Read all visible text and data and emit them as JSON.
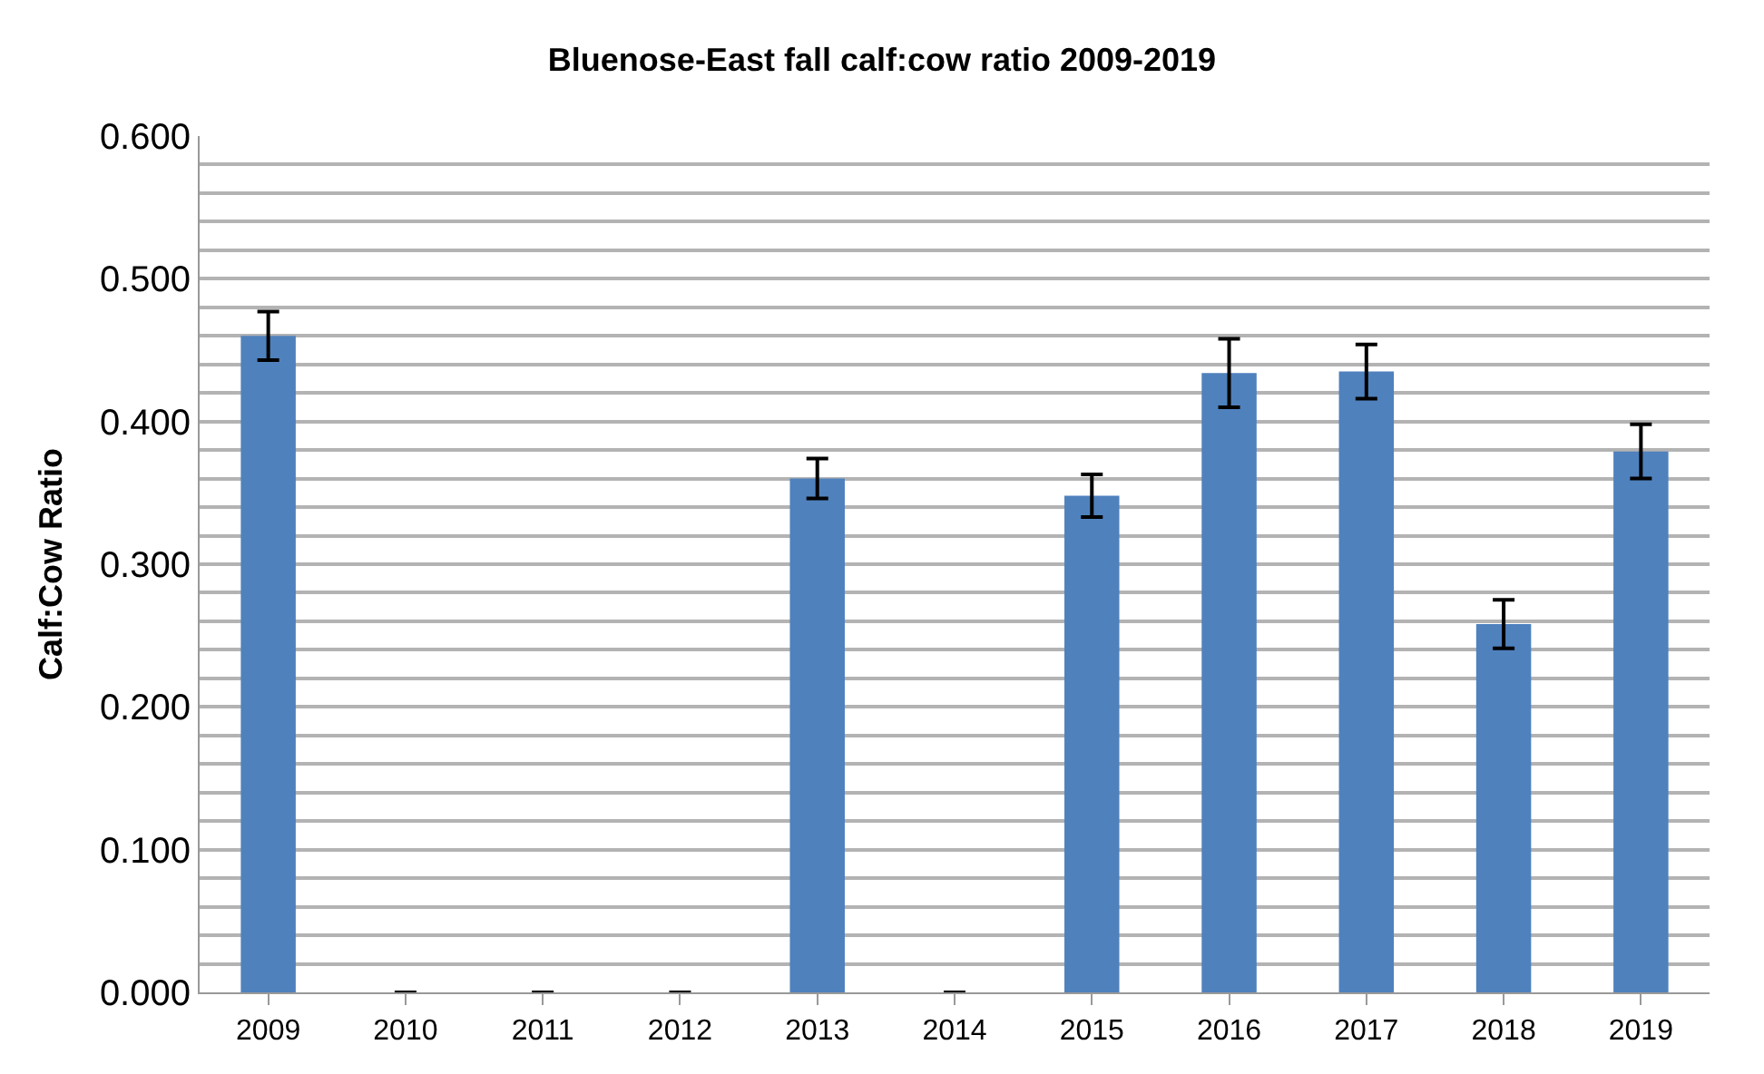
{
  "chart_data": {
    "type": "bar",
    "title": "Bluenose-East fall calf:cow ratio 2009-2019",
    "ylabel": "Calf:Cow Ratio",
    "categories": [
      "2009",
      "2010",
      "2011",
      "2012",
      "2013",
      "2014",
      "2015",
      "2016",
      "2017",
      "2018",
      "2019"
    ],
    "series": [
      {
        "color": "#4f81bd",
        "values": [
          0.46,
          0,
          0,
          0,
          0.36,
          0,
          0.348,
          0.434,
          0.435,
          0.258,
          0.379
        ],
        "errors": [
          0.017,
          null,
          null,
          null,
          0.014,
          null,
          0.015,
          0.024,
          0.019,
          0.017,
          0.019
        ]
      }
    ],
    "ylim": [
      0,
      0.6
    ],
    "yticks": [
      {
        "value": 0,
        "label": "0.000"
      },
      {
        "value": 0.02,
        "label": null
      },
      {
        "value": 0.04,
        "label": null
      },
      {
        "value": 0.06,
        "label": null
      },
      {
        "value": 0.08,
        "label": null
      },
      {
        "value": 0.1,
        "label": "0.100"
      },
      {
        "value": 0.12,
        "label": null
      },
      {
        "value": 0.14,
        "label": null
      },
      {
        "value": 0.16,
        "label": null
      },
      {
        "value": 0.18,
        "label": null
      },
      {
        "value": 0.2,
        "label": "0.200"
      },
      {
        "value": 0.22,
        "label": null
      },
      {
        "value": 0.24,
        "label": null
      },
      {
        "value": 0.26,
        "label": null
      },
      {
        "value": 0.28,
        "label": null
      },
      {
        "value": 0.3,
        "label": "0.300"
      },
      {
        "value": 0.32,
        "label": null
      },
      {
        "value": 0.34,
        "label": null
      },
      {
        "value": 0.36,
        "label": null
      },
      {
        "value": 0.38,
        "label": null
      },
      {
        "value": 0.4,
        "label": "0.400"
      },
      {
        "value": 0.42,
        "label": null
      },
      {
        "value": 0.44,
        "label": null
      },
      {
        "value": 0.46,
        "label": null
      },
      {
        "value": 0.48,
        "label": null
      },
      {
        "value": 0.5,
        "label": "0.500"
      },
      {
        "value": 0.52,
        "label": null
      },
      {
        "value": 0.54,
        "label": null
      },
      {
        "value": 0.56,
        "label": null
      },
      {
        "value": 0.58,
        "label": null
      },
      {
        "value": 0.6,
        "label": "0.600"
      }
    ],
    "grid": "y"
  }
}
